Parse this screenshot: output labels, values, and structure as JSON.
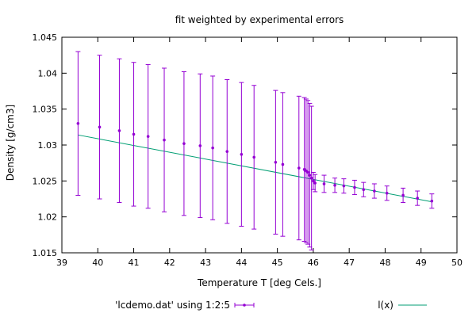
{
  "chart_data": {
    "type": "scatter",
    "title": "fit weighted by experimental errors",
    "xlabel": "Temperature T  [deg Cels.]",
    "ylabel": "Density [g/cm3]",
    "xlim": [
      39,
      50
    ],
    "ylim": [
      1.015,
      1.045
    ],
    "xticks": [
      "39",
      "40",
      "41",
      "42",
      "43",
      "44",
      "45",
      "46",
      "47",
      "48",
      "49",
      "50"
    ],
    "yticks": [
      "1.015",
      "1.02",
      "1.025",
      "1.03",
      "1.035",
      "1.04",
      "1.045"
    ],
    "grid": false,
    "legend_position": "bottom",
    "series": [
      {
        "name": "'lcdemo.dat' using 1:2:5",
        "style": "points-with-yerrorbars",
        "color": "#9400d3",
        "x": [
          39.45,
          40.05,
          40.6,
          41.0,
          41.4,
          41.85,
          42.4,
          42.85,
          43.2,
          43.6,
          44.0,
          44.35,
          44.95,
          45.15,
          45.6,
          45.75,
          45.8,
          45.85,
          45.9,
          45.95,
          46.0,
          46.05,
          46.3,
          46.6,
          46.85,
          47.15,
          47.4,
          47.7,
          48.05,
          48.5,
          48.9,
          49.3
        ],
        "y": [
          1.033,
          1.0325,
          1.032,
          1.0315,
          1.0312,
          1.0307,
          1.0302,
          1.0299,
          1.0296,
          1.0291,
          1.0287,
          1.0283,
          1.0276,
          1.0273,
          1.0268,
          1.0266,
          1.0264,
          1.0262,
          1.0258,
          1.0254,
          1.025,
          1.0247,
          1.0246,
          1.0244,
          1.0243,
          1.0241,
          1.0238,
          1.0236,
          1.0233,
          1.023,
          1.0226,
          1.0222
        ],
        "yerr": [
          0.01,
          0.01,
          0.01,
          0.01,
          0.01,
          0.01,
          0.01,
          0.01,
          0.01,
          0.01,
          0.01,
          0.01,
          0.01,
          0.01,
          0.01,
          0.01,
          0.01,
          0.01,
          0.01,
          0.01,
          0.0012,
          0.0012,
          0.0012,
          0.001,
          0.001,
          0.001,
          0.001,
          0.001,
          0.001,
          0.001,
          0.001,
          0.001
        ]
      },
      {
        "name": "l(x)",
        "style": "line",
        "color": "#009e73",
        "x": [
          39.45,
          49.3
        ],
        "y": [
          1.0314,
          1.0221
        ]
      }
    ]
  }
}
